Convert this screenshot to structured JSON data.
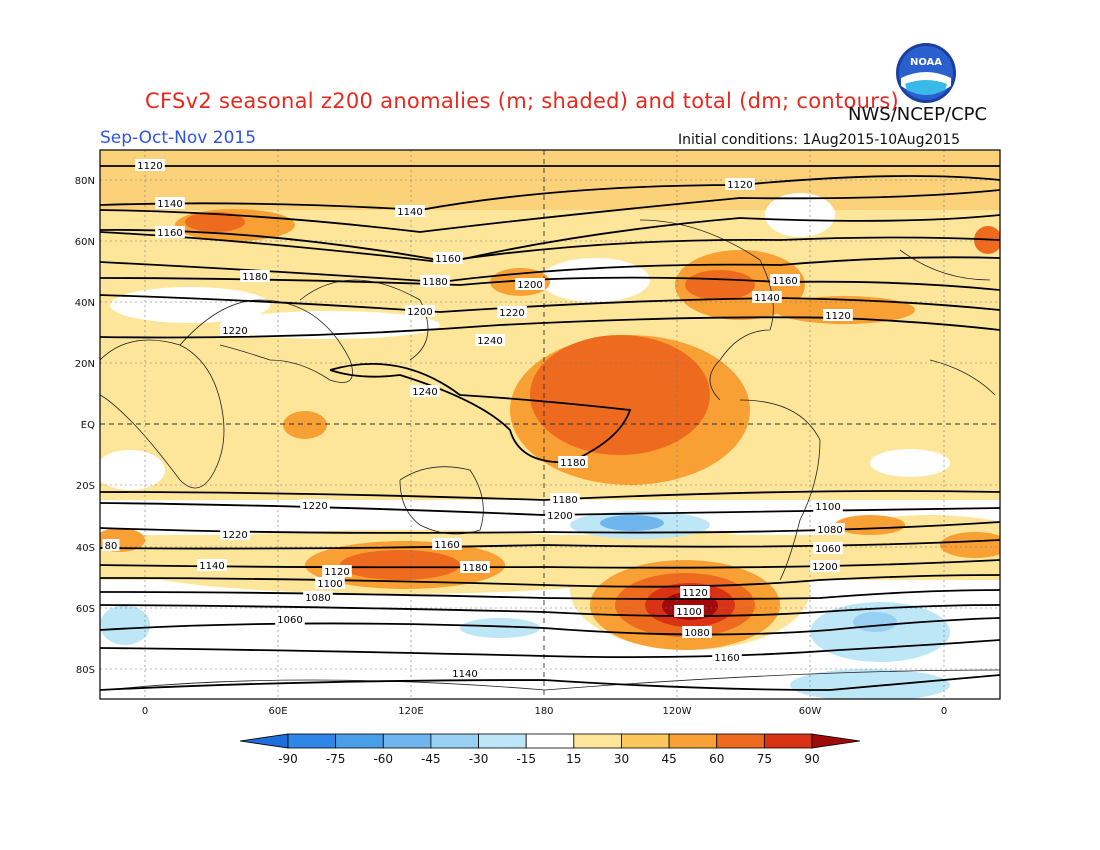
{
  "title": "CFSv2 seasonal z200 anomalies (m; shaded) and total (dm; contours)",
  "agency": "NWS/NCEP/CPC",
  "logo_text": "NOAA",
  "season": "Sep-Oct-Nov 2015",
  "initial_conditions": "Initial conditions: 1Aug2015-10Aug2015",
  "lat_labels": [
    "80N",
    "60N",
    "40N",
    "20N",
    "EQ",
    "20S",
    "40S",
    "60S",
    "80S"
  ],
  "lon_labels": [
    "0",
    "60E",
    "120E",
    "180",
    "120W",
    "60W",
    "0"
  ],
  "colorbar": {
    "labels": [
      "-90",
      "-75",
      "-60",
      "-45",
      "-30",
      "-15",
      "15",
      "30",
      "45",
      "60",
      "75",
      "90"
    ],
    "colors": [
      "#1e6edc",
      "#2f86e6",
      "#4a9ee8",
      "#6fb6ee",
      "#97d0f3",
      "#bde6f7",
      "#ffffff",
      "#fde69a",
      "#fbc65c",
      "#f8a033",
      "#ee6a1e",
      "#da3214",
      "#a00a0a"
    ]
  },
  "contour_labels": [
    "1120",
    "1140",
    "1160",
    "1180",
    "1200",
    "1220",
    "1240",
    "1220",
    "1200",
    "1180",
    "1160",
    "1140",
    "1120",
    "1100",
    "1080",
    "1060",
    "1140",
    "1120",
    "1100",
    "1080",
    "1160",
    "1180",
    "1200",
    "1220",
    "80",
    "1240",
    "1120",
    "1140",
    "1160",
    "1180",
    "1200",
    "1220",
    "1180",
    "1160",
    "1140",
    "1120",
    "1100",
    "1080",
    "1060"
  ],
  "colors": {
    "title": "#e8281e",
    "season": "#2f54e0",
    "contour": "#000000"
  }
}
